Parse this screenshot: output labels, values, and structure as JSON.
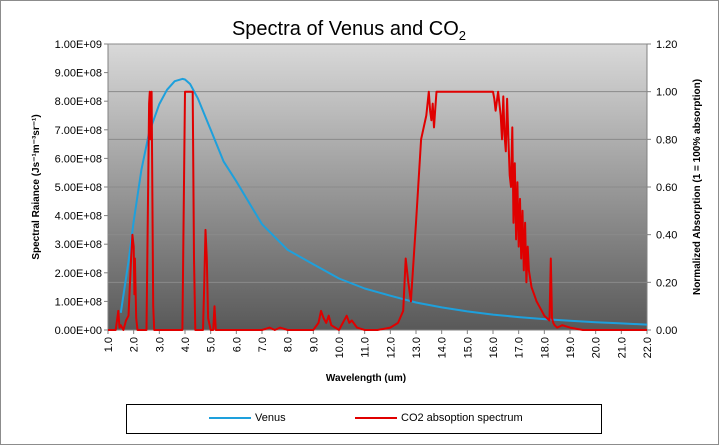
{
  "chart_data": {
    "type": "line",
    "title": "Spectra of Venus and CO",
    "title_subscript": "2",
    "xlabel": "Wavelength (um)",
    "ylabel_left": "Spectral Raiance (Js⁻¹m⁻³sr⁻¹)",
    "ylabel_right": "Normalized Absorption (1 = 100% absorption)",
    "xlim": [
      1.0,
      22.0
    ],
    "ylim_left": [
      0,
      1000000000
    ],
    "ylim_right": [
      0,
      1.2
    ],
    "x_ticks": [
      "1.0",
      "2.0",
      "3.0",
      "4.0",
      "5.0",
      "6.0",
      "7.0",
      "8.0",
      "9.0",
      "10.0",
      "11.0",
      "12.0",
      "13.0",
      "14.0",
      "15.0",
      "16.0",
      "17.0",
      "18.0",
      "19.0",
      "20.0",
      "21.0",
      "22.0"
    ],
    "x_tick_values": [
      1,
      2,
      3,
      4,
      5,
      6,
      7,
      8,
      9,
      10,
      11,
      12,
      13,
      14,
      15,
      16,
      17,
      18,
      19,
      20,
      21,
      22
    ],
    "y_left_ticks": [
      "0.00E+00",
      "1.00E+08",
      "2.00E+08",
      "3.00E+08",
      "4.00E+08",
      "5.00E+08",
      "6.00E+08",
      "7.00E+08",
      "8.00E+08",
      "9.00E+08",
      "1.00E+09"
    ],
    "y_left_values": [
      0,
      100000000,
      200000000,
      300000000,
      400000000,
      500000000,
      600000000,
      700000000,
      800000000,
      900000000,
      1000000000
    ],
    "y_right_ticks": [
      "0.00",
      "0.20",
      "0.40",
      "0.60",
      "0.80",
      "1.00",
      "1.20"
    ],
    "y_right_values": [
      0,
      0.2,
      0.4,
      0.6,
      0.8,
      1.0,
      1.2
    ],
    "legend": "bottom",
    "series": [
      {
        "name": "Venus",
        "axis": "left",
        "color": "#1ea0dc",
        "x": [
          1.5,
          1.8,
          2.0,
          2.3,
          2.6,
          3.0,
          3.3,
          3.6,
          3.9,
          4.0,
          4.2,
          4.5,
          5.0,
          5.5,
          6.0,
          7.0,
          8.0,
          9.0,
          10.0,
          11.0,
          12.0,
          13.0,
          14.0,
          15.0,
          16.0,
          17.0,
          18.0,
          19.0,
          20.0,
          21.0,
          22.0
        ],
        "y": [
          60000000,
          240000000,
          380000000,
          560000000,
          690000000,
          790000000,
          840000000,
          870000000,
          878000000,
          876000000,
          860000000,
          810000000,
          700000000,
          590000000,
          520000000,
          370000000,
          280000000,
          230000000,
          180000000,
          145000000,
          120000000,
          96000000,
          79000000,
          65000000,
          54000000,
          45000000,
          38000000,
          32000000,
          27000000,
          23000000,
          19000000
        ]
      },
      {
        "name": "CO2 absoption spectrum",
        "axis": "right",
        "color": "#e00000",
        "x": [
          1.0,
          1.3,
          1.4,
          1.45,
          1.5,
          1.6,
          1.7,
          1.8,
          1.9,
          1.95,
          2.0,
          2.03,
          2.05,
          2.1,
          2.15,
          2.3,
          2.5,
          2.6,
          2.63,
          2.66,
          2.7,
          2.73,
          2.76,
          2.8,
          2.9,
          3.0,
          3.5,
          3.9,
          4.0,
          4.05,
          4.1,
          4.2,
          4.3,
          4.35,
          4.4,
          4.5,
          4.7,
          4.75,
          4.8,
          4.85,
          4.9,
          5.0,
          5.1,
          5.15,
          5.2,
          5.3,
          6.0,
          7.0,
          7.3,
          7.5,
          7.7,
          8.0,
          8.5,
          9.0,
          9.2,
          9.3,
          9.4,
          9.5,
          9.6,
          9.7,
          10.0,
          10.2,
          10.3,
          10.4,
          10.5,
          10.7,
          11.0,
          11.5,
          12.0,
          12.3,
          12.5,
          12.6,
          12.7,
          12.8,
          13.0,
          13.2,
          13.4,
          13.5,
          13.55,
          13.6,
          13.65,
          13.7,
          13.75,
          13.8,
          13.9,
          14.0,
          14.5,
          15.0,
          15.5,
          16.0,
          16.05,
          16.1,
          16.2,
          16.3,
          16.35,
          16.4,
          16.45,
          16.5,
          16.55,
          16.6,
          16.65,
          16.7,
          16.75,
          16.8,
          16.85,
          16.9,
          16.95,
          17.0,
          17.05,
          17.1,
          17.15,
          17.2,
          17.25,
          17.3,
          17.35,
          17.4,
          17.5,
          17.6,
          17.7,
          17.8,
          17.9,
          18.0,
          18.1,
          18.2,
          18.25,
          18.3,
          18.35,
          18.4,
          18.5,
          18.7,
          19.0,
          19.5,
          20.0,
          21.0,
          22.0
        ],
        "y": [
          0.0,
          0.0,
          0.08,
          0.01,
          0.02,
          0.0,
          0.04,
          0.06,
          0.3,
          0.4,
          0.35,
          0.15,
          0.3,
          0.05,
          0.0,
          0.0,
          0.0,
          0.95,
          1.0,
          0.8,
          1.0,
          0.55,
          0.1,
          0.0,
          0.0,
          0.0,
          0.0,
          0.0,
          1.0,
          1.0,
          1.0,
          1.0,
          1.0,
          0.3,
          0.0,
          0.0,
          0.0,
          0.2,
          0.42,
          0.3,
          0.05,
          0.0,
          0.0,
          0.1,
          0.0,
          0.0,
          0.0,
          0.0,
          0.01,
          0.0,
          0.01,
          0.0,
          0.0,
          0.0,
          0.03,
          0.08,
          0.05,
          0.03,
          0.06,
          0.02,
          0.0,
          0.04,
          0.06,
          0.03,
          0.04,
          0.01,
          0.0,
          0.0,
          0.01,
          0.03,
          0.08,
          0.3,
          0.2,
          0.12,
          0.45,
          0.8,
          0.9,
          1.0,
          0.92,
          0.88,
          0.95,
          0.85,
          0.93,
          1.0,
          1.0,
          1.0,
          1.0,
          1.0,
          1.0,
          1.0,
          0.97,
          0.92,
          1.0,
          0.9,
          0.8,
          0.98,
          0.82,
          0.75,
          0.97,
          0.8,
          0.65,
          0.6,
          0.85,
          0.45,
          0.7,
          0.38,
          0.62,
          0.35,
          0.55,
          0.3,
          0.5,
          0.25,
          0.45,
          0.2,
          0.35,
          0.25,
          0.18,
          0.15,
          0.12,
          0.1,
          0.08,
          0.06,
          0.05,
          0.04,
          0.3,
          0.05,
          0.03,
          0.02,
          0.01,
          0.02,
          0.01,
          0.0,
          0.0,
          0.0,
          0.0
        ]
      }
    ]
  }
}
